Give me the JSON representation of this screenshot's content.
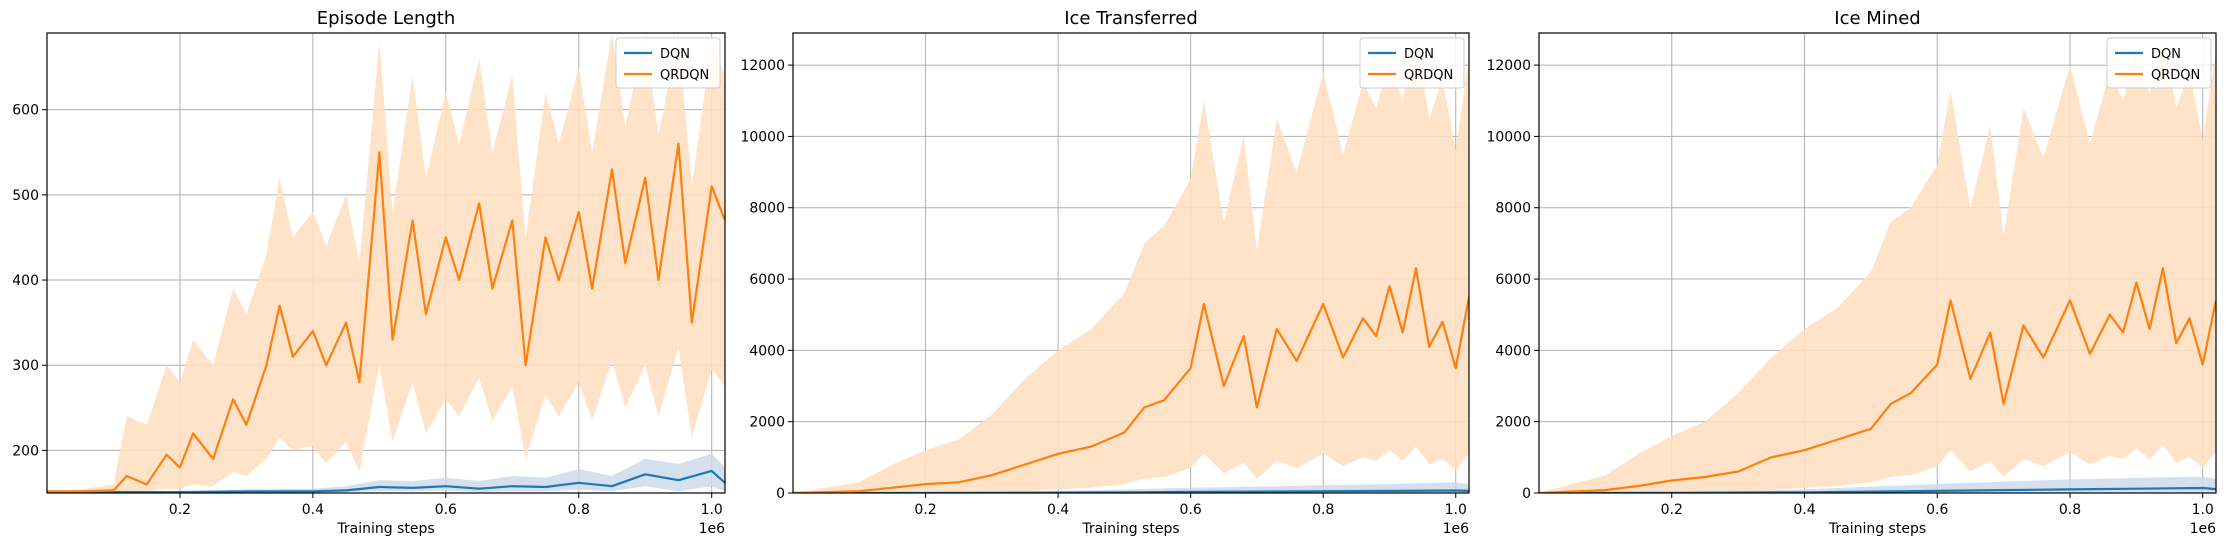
{
  "colors": {
    "dqn": "#1f77b4",
    "qrdqn": "#ff7f0e",
    "qrdqn_band": "#ffe0c2",
    "dqn_band": "#c9d8e8",
    "grid": "#b0b0b0"
  },
  "chart_data": [
    {
      "type": "line",
      "title": "Episode Length",
      "xlabel": "Training steps",
      "ylabel": "",
      "x_offset_text": "1e6",
      "xlim": [
        0.0,
        1.02
      ],
      "ylim": [
        150,
        690
      ],
      "xticks": [
        0.2,
        0.4,
        0.6,
        0.8,
        1.0
      ],
      "xtick_labels": [
        "0.2",
        "0.4",
        "0.6",
        "0.8",
        "1.0"
      ],
      "yticks": [
        200,
        300,
        400,
        500,
        600
      ],
      "ytick_labels": [
        "200",
        "300",
        "400",
        "500",
        "600"
      ],
      "grid": true,
      "legend_position": "upper right",
      "series": [
        {
          "name": "DQN",
          "color": "#1f77b4",
          "x": [
            0.0,
            0.1,
            0.2,
            0.3,
            0.4,
            0.45,
            0.5,
            0.55,
            0.6,
            0.65,
            0.7,
            0.75,
            0.8,
            0.85,
            0.9,
            0.95,
            1.0,
            1.02
          ],
          "values": [
            151,
            151,
            151,
            152,
            152,
            153,
            157,
            156,
            158,
            155,
            158,
            157,
            162,
            158,
            172,
            165,
            176,
            162
          ],
          "lower": [
            151,
            151,
            151,
            151,
            151,
            151,
            152,
            152,
            153,
            151,
            152,
            152,
            154,
            152,
            158,
            152,
            158,
            152
          ],
          "upper": [
            152,
            152,
            152,
            154,
            155,
            158,
            165,
            164,
            168,
            164,
            170,
            168,
            178,
            170,
            190,
            184,
            196,
            180
          ]
        },
        {
          "name": "QRDQN",
          "color": "#ff7f0e",
          "x": [
            0.0,
            0.05,
            0.1,
            0.12,
            0.15,
            0.18,
            0.2,
            0.22,
            0.25,
            0.28,
            0.3,
            0.33,
            0.35,
            0.37,
            0.4,
            0.42,
            0.45,
            0.47,
            0.5,
            0.52,
            0.55,
            0.57,
            0.6,
            0.62,
            0.65,
            0.67,
            0.7,
            0.72,
            0.75,
            0.77,
            0.8,
            0.82,
            0.85,
            0.87,
            0.9,
            0.92,
            0.95,
            0.97,
            1.0,
            1.02
          ],
          "values": [
            152,
            152,
            153,
            170,
            160,
            195,
            180,
            220,
            190,
            260,
            230,
            300,
            370,
            310,
            340,
            300,
            350,
            280,
            550,
            330,
            470,
            360,
            450,
            400,
            490,
            390,
            470,
            300,
            450,
            400,
            480,
            390,
            530,
            420,
            520,
            400,
            560,
            350,
            510,
            470
          ],
          "lower": [
            151,
            151,
            151,
            152,
            152,
            155,
            155,
            160,
            158,
            175,
            170,
            190,
            215,
            200,
            205,
            185,
            210,
            175,
            300,
            210,
            280,
            220,
            260,
            240,
            285,
            235,
            275,
            190,
            265,
            240,
            280,
            235,
            305,
            250,
            300,
            240,
            320,
            215,
            295,
            275
          ],
          "upper": [
            153,
            154,
            160,
            240,
            230,
            300,
            280,
            330,
            300,
            390,
            360,
            430,
            520,
            450,
            480,
            440,
            500,
            420,
            680,
            480,
            640,
            520,
            620,
            560,
            660,
            550,
            640,
            450,
            620,
            560,
            650,
            550,
            690,
            580,
            690,
            570,
            690,
            510,
            680,
            640
          ]
        }
      ]
    },
    {
      "type": "line",
      "title": "Ice Transferred",
      "xlabel": "Training steps",
      "ylabel": "",
      "x_offset_text": "1e6",
      "xlim": [
        0.0,
        1.02
      ],
      "ylim": [
        0,
        12900
      ],
      "xticks": [
        0.2,
        0.4,
        0.6,
        0.8,
        1.0
      ],
      "xtick_labels": [
        "0.2",
        "0.4",
        "0.6",
        "0.8",
        "1.0"
      ],
      "yticks": [
        0,
        2000,
        4000,
        6000,
        8000,
        10000,
        12000
      ],
      "ytick_labels": [
        "0",
        "2000",
        "4000",
        "6000",
        "8000",
        "10000",
        "12000"
      ],
      "grid": true,
      "legend_position": "upper right",
      "series": [
        {
          "name": "DQN",
          "color": "#1f77b4",
          "x": [
            0.0,
            0.2,
            0.4,
            0.5,
            0.6,
            0.7,
            0.8,
            0.9,
            1.0,
            1.02
          ],
          "values": [
            0,
            0,
            10,
            20,
            30,
            40,
            50,
            60,
            70,
            60
          ],
          "lower": [
            0,
            0,
            0,
            0,
            0,
            0,
            0,
            0,
            0,
            0
          ],
          "upper": [
            0,
            10,
            60,
            100,
            150,
            180,
            220,
            250,
            300,
            250
          ]
        },
        {
          "name": "QRDQN",
          "color": "#ff7f0e",
          "x": [
            0.0,
            0.1,
            0.15,
            0.2,
            0.25,
            0.3,
            0.35,
            0.4,
            0.45,
            0.5,
            0.53,
            0.56,
            0.6,
            0.62,
            0.65,
            0.68,
            0.7,
            0.73,
            0.76,
            0.8,
            0.83,
            0.86,
            0.88,
            0.9,
            0.92,
            0.94,
            0.96,
            0.98,
            1.0,
            1.02
          ],
          "values": [
            0,
            50,
            150,
            250,
            300,
            500,
            800,
            1100,
            1300,
            1700,
            2400,
            2600,
            3500,
            5300,
            3000,
            4400,
            2400,
            4600,
            3700,
            5300,
            3800,
            4900,
            4400,
            5800,
            4500,
            6300,
            4100,
            4800,
            3500,
            5500
          ],
          "lower": [
            0,
            0,
            0,
            0,
            0,
            0,
            50,
            100,
            150,
            250,
            400,
            450,
            700,
            1100,
            550,
            850,
            400,
            900,
            700,
            1100,
            750,
            1000,
            900,
            1200,
            900,
            1300,
            800,
            950,
            650,
            1100
          ],
          "upper": [
            0,
            300,
            800,
            1200,
            1500,
            2200,
            3200,
            4000,
            4600,
            5600,
            7000,
            7500,
            8800,
            11000,
            7600,
            10000,
            6800,
            10500,
            9000,
            11800,
            9500,
            11500,
            10800,
            12200,
            11000,
            12800,
            10500,
            11600,
            9600,
            12300
          ]
        }
      ]
    },
    {
      "type": "line",
      "title": "Ice Mined",
      "xlabel": "Training steps",
      "ylabel": "",
      "x_offset_text": "1e6",
      "xlim": [
        0.0,
        1.02
      ],
      "ylim": [
        0,
        12900
      ],
      "xticks": [
        0.2,
        0.4,
        0.6,
        0.8,
        1.0
      ],
      "xtick_labels": [
        "0.2",
        "0.4",
        "0.6",
        "0.8",
        "1.0"
      ],
      "yticks": [
        0,
        2000,
        4000,
        6000,
        8000,
        10000,
        12000
      ],
      "ytick_labels": [
        "0",
        "2000",
        "4000",
        "6000",
        "8000",
        "10000",
        "12000"
      ],
      "grid": true,
      "legend_position": "upper right",
      "series": [
        {
          "name": "DQN",
          "color": "#1f77b4",
          "x": [
            0.0,
            0.2,
            0.4,
            0.5,
            0.6,
            0.7,
            0.8,
            0.9,
            1.0,
            1.02
          ],
          "values": [
            0,
            5,
            20,
            40,
            60,
            80,
            100,
            120,
            140,
            110
          ],
          "lower": [
            0,
            0,
            0,
            0,
            0,
            0,
            0,
            0,
            0,
            0
          ],
          "upper": [
            0,
            20,
            100,
            180,
            250,
            320,
            380,
            420,
            460,
            400
          ]
        },
        {
          "name": "QRDQN",
          "color": "#ff7f0e",
          "x": [
            0.0,
            0.1,
            0.15,
            0.2,
            0.25,
            0.3,
            0.35,
            0.4,
            0.45,
            0.5,
            0.53,
            0.56,
            0.6,
            0.62,
            0.65,
            0.68,
            0.7,
            0.73,
            0.76,
            0.8,
            0.83,
            0.86,
            0.88,
            0.9,
            0.92,
            0.94,
            0.96,
            0.98,
            1.0,
            1.02
          ],
          "values": [
            0,
            80,
            200,
            350,
            450,
            600,
            1000,
            1200,
            1500,
            1800,
            2500,
            2800,
            3600,
            5400,
            3200,
            4500,
            2500,
            4700,
            3800,
            5400,
            3900,
            5000,
            4500,
            5900,
            4600,
            6300,
            4200,
            4900,
            3600,
            5400
          ],
          "lower": [
            0,
            0,
            0,
            0,
            0,
            20,
            80,
            150,
            200,
            300,
            450,
            500,
            750,
            1200,
            600,
            900,
            450,
            950,
            750,
            1150,
            800,
            1050,
            950,
            1250,
            950,
            1350,
            850,
            1000,
            700,
            1150
          ],
          "upper": [
            0,
            500,
            1100,
            1600,
            2000,
            2800,
            3800,
            4600,
            5200,
            6200,
            7600,
            8000,
            9200,
            11300,
            8000,
            10300,
            7200,
            10800,
            9400,
            12000,
            9800,
            11800,
            11000,
            12400,
            11200,
            12800,
            10800,
            11800,
            9900,
            12400
          ]
        }
      ]
    }
  ]
}
